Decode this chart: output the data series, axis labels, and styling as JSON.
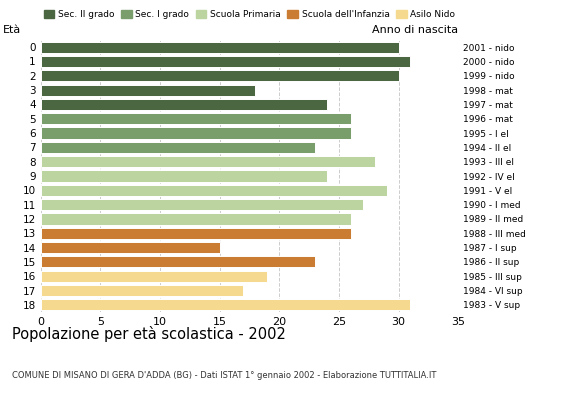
{
  "ages": [
    18,
    17,
    16,
    15,
    14,
    13,
    12,
    11,
    10,
    9,
    8,
    7,
    6,
    5,
    4,
    3,
    2,
    1,
    0
  ],
  "values": [
    30,
    31,
    30,
    18,
    24,
    26,
    26,
    23,
    28,
    24,
    29,
    27,
    26,
    26,
    15,
    23,
    19,
    17,
    31
  ],
  "right_labels": [
    "1983 - V sup",
    "1984 - VI sup",
    "1985 - III sup",
    "1986 - II sup",
    "1987 - I sup",
    "1988 - III med",
    "1989 - II med",
    "1990 - I med",
    "1991 - V el",
    "1992 - IV el",
    "1993 - III el",
    "1994 - II el",
    "1995 - I el",
    "1996 - mat",
    "1997 - mat",
    "1998 - mat",
    "1999 - nido",
    "2000 - nido",
    "2001 - nido"
  ],
  "bar_colors": [
    "#4a6741",
    "#4a6741",
    "#4a6741",
    "#4a6741",
    "#4a6741",
    "#7a9e6b",
    "#7a9e6b",
    "#7a9e6b",
    "#bcd4a0",
    "#bcd4a0",
    "#bcd4a0",
    "#bcd4a0",
    "#bcd4a0",
    "#c97c32",
    "#c97c32",
    "#c97c32",
    "#f5d98e",
    "#f5d98e",
    "#f5d98e"
  ],
  "legend_labels": [
    "Sec. II grado",
    "Sec. I grado",
    "Scuola Primaria",
    "Scuola dell'Infanzia",
    "Asilo Nido"
  ],
  "legend_colors": [
    "#4a6741",
    "#7a9e6b",
    "#bcd4a0",
    "#c97c32",
    "#f5d98e"
  ],
  "title": "Popolazione per età scolastica - 2002",
  "subtitle": "COMUNE DI MISANO DI GERA D'ADDA (BG) - Dati ISTAT 1° gennaio 2002 - Elaborazione TUTTITALIA.IT",
  "age_label": "Età",
  "year_label": "Anno di nascita",
  "xlim": [
    0,
    35
  ],
  "xticks": [
    0,
    5,
    10,
    15,
    20,
    25,
    30,
    35
  ],
  "background_color": "#ffffff",
  "grid_color": "#cccccc"
}
